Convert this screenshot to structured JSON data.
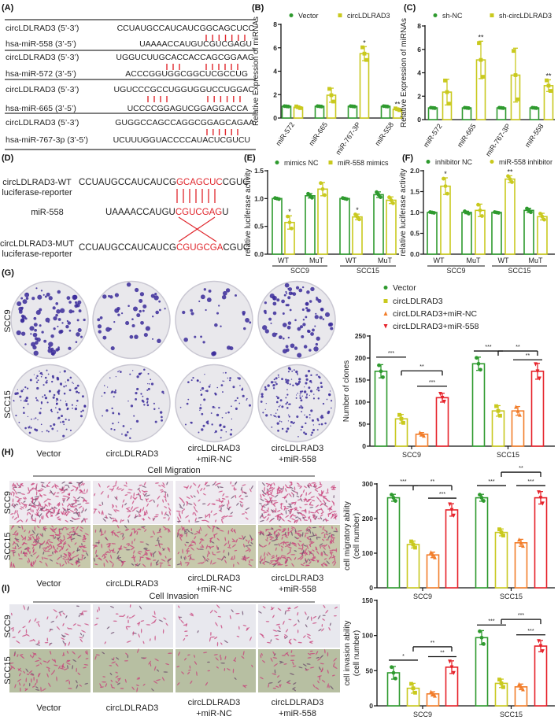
{
  "panel_labels": {
    "A": "(A)",
    "B": "(B)",
    "C": "(C)",
    "D": "(D)",
    "E": "(E)",
    "F": "(F)",
    "G": "(G)",
    "H": "(H)",
    "I": "(I)"
  },
  "colors": {
    "vector": "#2e9a2e",
    "circ": "#c9c91e",
    "mir_nc": "#f27d2a",
    "mir_558": "#e6222a",
    "match_line": "#e0262c",
    "plate_dot": "#3a2a9a"
  },
  "panelA": {
    "rows": [
      {
        "label": "circLDLRAD3 (5’-3’)",
        "seq": "CCUAUGCCAUCAUCGGCAGCUCC"
      },
      {
        "label": "hsa-miR-558 (3’-5’)",
        "seq": "UAAAACCAUGUCGUCGAGU"
      },
      {
        "label": "circLDLRAD3 (5’-3’)",
        "seq": "UGGUCUUGCACCACCAGCGGAAG"
      },
      {
        "label": "hsa-miR-572 (3’-5’)",
        "seq": "ACCCGGUGGCGGCUCGCCUG"
      },
      {
        "label": "circLDLRAD3 (5’-3’)",
        "seq": "UGUCCCGCCUGGUGGUCCUGGAC"
      },
      {
        "label": "hsa-miR-665 (3’-5’)",
        "seq": "UCCCCGGAGUCGGAGGACCA"
      },
      {
        "label": "circLDLRAD3 (5’-3’)",
        "seq": "GUGGCCAGCCAGGCGGAGCAGAA"
      },
      {
        "label": "hsa-miR-767-3p (3’-5’)",
        "seq": "UCUUUGGUACCCCAUACUCGUCU"
      }
    ]
  },
  "panelD": {
    "wt": {
      "label1": "circLDLRAD3-WT",
      "label2": "luciferase-reporter",
      "pre": "CCUAUGCCAUCAUCG",
      "match": "GCAGCUC",
      "post": "CGUC"
    },
    "mir": {
      "label": "miR-558",
      "pre": "UAAAACCAUGU",
      "match": "CGUCGAG",
      "post": "U"
    },
    "mut": {
      "label1": "circLDLRAD3-MUT",
      "label2": "luciferase-reporter",
      "pre": "CCUAUGCCAUCAUCG",
      "match": "CGUGCGA",
      "post": "CGUC"
    }
  },
  "legends": {
    "B": [
      "Vector",
      "circLDLRAD3"
    ],
    "C": [
      "sh-NC",
      "sh-circLDLRAD3"
    ],
    "E": [
      "mimics NC",
      "miR-558 mimics"
    ],
    "F": [
      "inhibitor NC",
      "miR-558 inhibitor"
    ],
    "G": [
      "Vector",
      "circLDLRAD3",
      "circLDLRAD3+miR-NC",
      "circLDLRAD3+miR-558"
    ]
  },
  "images": {
    "row_labels": [
      "SCC9",
      "SCC15"
    ],
    "col_labels": [
      [
        "Vector",
        ""
      ],
      [
        "circLDLRAD3",
        ""
      ],
      [
        "circLDLRAD3",
        "+miR-NC"
      ],
      [
        "circLDLRAD3",
        "+miR-558"
      ]
    ],
    "migration_title": "Cell Migration",
    "invasion_title": "Cell Invasion"
  },
  "chart_data": [
    {
      "id": "B",
      "type": "bar",
      "ylabel": [
        "Relative Expression of miRNAs"
      ],
      "ylim": [
        0,
        8
      ],
      "yticks": [
        0,
        2,
        4,
        6,
        8
      ],
      "ytick_labels": [
        "0",
        "2",
        "4",
        "6",
        "8"
      ],
      "categories": [
        "miR-572",
        "miR-665",
        "miR-767-3P",
        "miR-558"
      ],
      "series": [
        {
          "name": "Vector",
          "values": [
            1,
            1,
            1,
            1
          ],
          "sd": [
            0.02,
            0.02,
            0.02,
            0.02
          ]
        },
        {
          "name": "circLDLRAD3",
          "values": [
            0.92,
            1.95,
            5.5,
            0.75
          ],
          "sd": [
            0.08,
            0.6,
            0.6,
            0.08
          ]
        }
      ],
      "stars": [
        {
          "cat": 2,
          "series": 1,
          "label": "*"
        },
        {
          "cat": 3,
          "series": 1,
          "label": "**"
        }
      ]
    },
    {
      "id": "C",
      "type": "bar",
      "ylabel": [
        "Relative Expression of miRNAs"
      ],
      "ylim": [
        0,
        8
      ],
      "yticks": [
        0,
        2,
        4,
        6,
        8
      ],
      "ytick_labels": [
        "0",
        "2",
        "4",
        "6",
        "8"
      ],
      "categories": [
        "miR-572",
        "miR-665",
        "miR-767-3P",
        "miR-558"
      ],
      "series": [
        {
          "name": "sh-NC",
          "values": [
            1,
            1,
            1,
            1
          ],
          "sd": [
            0.02,
            0.02,
            0.02,
            0.02
          ]
        },
        {
          "name": "sh-circLDLRAD3",
          "values": [
            2.35,
            5.1,
            3.8,
            2.9
          ],
          "sd": [
            1.1,
            1.6,
            2.3,
            0.5
          ]
        }
      ],
      "stars": [
        {
          "cat": 1,
          "series": 1,
          "label": "**"
        },
        {
          "cat": 3,
          "series": 1,
          "label": "**"
        }
      ]
    },
    {
      "id": "E",
      "type": "bar",
      "ylabel": [
        "relative luciferase activity"
      ],
      "ylim": [
        0,
        1.5
      ],
      "yticks": [
        0,
        0.5,
        1,
        1.5
      ],
      "ytick_labels": [
        "0.0",
        "0.5",
        "1.0",
        "1.5"
      ],
      "categories": [
        "WT",
        "MuT",
        "WT",
        "MuT"
      ],
      "groups": [
        "SCC9",
        "SCC15"
      ],
      "series": [
        {
          "name": "mimics NC",
          "values": [
            1,
            1.05,
            1,
            1.07
          ],
          "sd": [
            0.01,
            0.04,
            0.01,
            0.05
          ]
        },
        {
          "name": "miR-558 mimics",
          "values": [
            0.57,
            1.17,
            0.67,
            0.97
          ],
          "sd": [
            0.12,
            0.12,
            0.05,
            0.06
          ]
        }
      ],
      "stars": [
        {
          "cat": 0,
          "series": 1,
          "label": "*"
        },
        {
          "cat": 2,
          "series": 1,
          "label": "*"
        }
      ]
    },
    {
      "id": "F",
      "type": "bar",
      "ylabel": [
        "relative luciferase activity"
      ],
      "ylim": [
        0,
        2
      ],
      "yticks": [
        0,
        0.5,
        1,
        1.5,
        2
      ],
      "ytick_labels": [
        "0.0",
        "0.5",
        "1.0",
        "1.5",
        "2.0"
      ],
      "categories": [
        "WT",
        "MuT",
        "WT",
        "MuT"
      ],
      "groups": [
        "SCC9",
        "SCC15"
      ],
      "series": [
        {
          "name": "inhibitor NC",
          "values": [
            1,
            1,
            1,
            1.05
          ],
          "sd": [
            0.01,
            0.03,
            0.01,
            0.05
          ]
        },
        {
          "name": "miR-558 inhibitor",
          "values": [
            1.63,
            1.05,
            1.8,
            0.9
          ],
          "sd": [
            0.2,
            0.15,
            0.08,
            0.08
          ]
        }
      ],
      "stars": [
        {
          "cat": 0,
          "series": 1,
          "label": "*"
        },
        {
          "cat": 2,
          "series": 1,
          "label": "**"
        }
      ]
    },
    {
      "id": "G",
      "type": "bar",
      "ylabel": [
        "Number of clones"
      ],
      "ylim": [
        0,
        250
      ],
      "yticks": [
        0,
        50,
        100,
        150,
        200,
        250
      ],
      "ytick_labels": [
        "0",
        "50",
        "100",
        "150",
        "200",
        "250"
      ],
      "categories": [
        "SCC9",
        "SCC15"
      ],
      "series": [
        {
          "name": "Vector",
          "values": [
            170,
            187
          ],
          "sd": [
            15,
            15
          ]
        },
        {
          "name": "circLDLRAD3",
          "values": [
            62,
            80
          ],
          "sd": [
            10,
            12
          ]
        },
        {
          "name": "circLDLRAD3+miR-NC",
          "values": [
            27,
            80
          ],
          "sd": [
            4,
            10
          ]
        },
        {
          "name": "circLDLRAD3+miR-558",
          "values": [
            110,
            170
          ],
          "sd": [
            10,
            18
          ]
        }
      ],
      "comparisons": [
        {
          "cat": 0,
          "from": 0,
          "to": 1,
          "level": 202,
          "label": "***",
          "bracket": false
        },
        {
          "cat": 0,
          "from": 1,
          "to": 3,
          "level": 171,
          "label": "**",
          "bracket": true
        },
        {
          "cat": 0,
          "from": 2,
          "to": 3,
          "level": 136,
          "label": "***",
          "bracket": false
        },
        {
          "cat": 1,
          "from": 0,
          "to": 1,
          "level": 216,
          "label": "***",
          "bracket": false
        },
        {
          "cat": 1,
          "from": 1,
          "to": 3,
          "level": 216,
          "label": "**",
          "bracket": true
        },
        {
          "cat": 1,
          "from": 2,
          "to": 3,
          "level": 196,
          "label": "**",
          "bracket": false
        }
      ]
    },
    {
      "id": "H",
      "type": "bar",
      "ylabel": [
        "cell migratory ability",
        "(cell number)"
      ],
      "ylim": [
        0,
        300
      ],
      "yticks": [
        0,
        100,
        200,
        300
      ],
      "ytick_labels": [
        "0",
        "100",
        "200",
        "300"
      ],
      "categories": [
        "SCC9",
        "SCC15"
      ],
      "series": [
        {
          "name": "Vector",
          "values": [
            260,
            260
          ],
          "sd": [
            10,
            10
          ]
        },
        {
          "name": "circLDLRAD3",
          "values": [
            125,
            160
          ],
          "sd": [
            10,
            10
          ]
        },
        {
          "name": "circLDLRAD3+miR-NC",
          "values": [
            95,
            130
          ],
          "sd": [
            8,
            10
          ]
        },
        {
          "name": "circLDLRAD3+miR-558",
          "values": [
            225,
            260
          ],
          "sd": [
            18,
            18
          ]
        }
      ],
      "comparisons": [
        {
          "cat": 0,
          "from": 0,
          "to": 1,
          "level": 295,
          "label": "***",
          "bracket": false
        },
        {
          "cat": 0,
          "from": 1,
          "to": 3,
          "level": 295,
          "label": "**",
          "bracket": true
        },
        {
          "cat": 0,
          "from": 2,
          "to": 3,
          "level": 259,
          "label": "***",
          "bracket": false
        },
        {
          "cat": 1,
          "from": 0,
          "to": 1,
          "level": 295,
          "label": "***",
          "bracket": false
        },
        {
          "cat": 1,
          "from": 1,
          "to": 3,
          "level": 334,
          "label": "**",
          "bracket": true
        },
        {
          "cat": 1,
          "from": 2,
          "to": 3,
          "level": 295,
          "label": "***",
          "bracket": false
        }
      ]
    },
    {
      "id": "I",
      "type": "bar",
      "ylabel": [
        "cell invasion ability",
        "(cell number)"
      ],
      "ylim": [
        0,
        150
      ],
      "yticks": [
        0,
        50,
        100,
        150
      ],
      "ytick_labels": [
        "0",
        "50",
        "100",
        "150"
      ],
      "categories": [
        "SCC9",
        "SCC15"
      ],
      "series": [
        {
          "name": "Vector",
          "values": [
            47,
            97
          ],
          "sd": [
            9,
            10
          ]
        },
        {
          "name": "circLDLRAD3",
          "values": [
            25,
            32
          ],
          "sd": [
            7,
            6
          ]
        },
        {
          "name": "circLDLRAD3+miR-NC",
          "values": [
            17,
            27
          ],
          "sd": [
            3,
            4
          ]
        },
        {
          "name": "circLDLRAD3+miR-558",
          "values": [
            55,
            85
          ],
          "sd": [
            9,
            8
          ]
        }
      ],
      "comparisons": [
        {
          "cat": 0,
          "from": 0,
          "to": 1,
          "level": 65,
          "label": "*",
          "bracket": false
        },
        {
          "cat": 0,
          "from": 1,
          "to": 3,
          "level": 84,
          "label": "**",
          "bracket": true
        },
        {
          "cat": 0,
          "from": 2,
          "to": 3,
          "level": 70,
          "label": "**",
          "bracket": false
        },
        {
          "cat": 1,
          "from": 0,
          "to": 1,
          "level": 115,
          "label": "***",
          "bracket": false
        },
        {
          "cat": 1,
          "from": 1,
          "to": 3,
          "level": 123,
          "label": "***",
          "bracket": true
        },
        {
          "cat": 1,
          "from": 2,
          "to": 3,
          "level": 101,
          "label": "***",
          "bracket": false
        }
      ]
    }
  ]
}
